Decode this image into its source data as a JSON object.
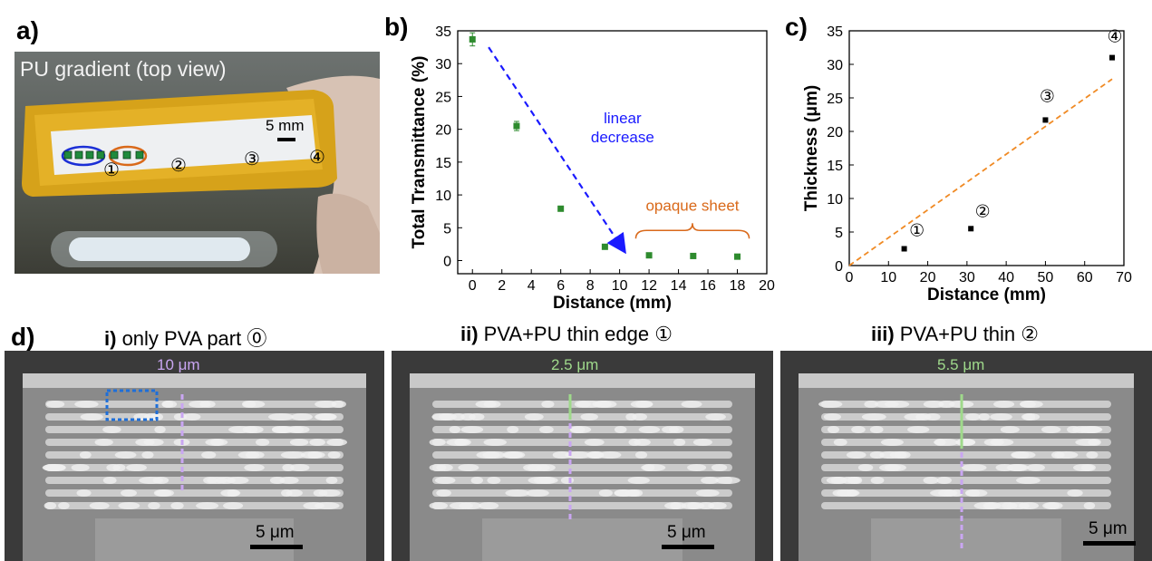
{
  "panels": {
    "a": {
      "letter": "a)",
      "title": "PU gradient (top view)",
      "scale_label": "5 mm",
      "markers": [
        "①",
        "②",
        "③",
        "④"
      ]
    },
    "b": {
      "letter": "b)"
    },
    "c": {
      "letter": "c)"
    },
    "d": {
      "letter": "d)",
      "images": [
        {
          "title_bold": "i)",
          "title_rest": " only PVA part ⓪",
          "measure": "10 μm",
          "measure_color": "#c9a6f2",
          "scale_label": "5 μm"
        },
        {
          "title_bold": "ii)",
          "title_rest": " PVA+PU thin edge ①",
          "measure": "2.5 μm",
          "measure_color": "#9fd98b",
          "scale_label": "5 μm"
        },
        {
          "title_bold": "iii)",
          "title_rest": " PVA+PU thin ②",
          "measure": "5.5 μm",
          "measure_color": "#9fd98b",
          "scale_label": "5 μm"
        }
      ]
    }
  },
  "chart_data": [
    {
      "type": "scatter",
      "panel": "b",
      "xlabel": "Distance (mm)",
      "ylabel": "Total Transmittance (%)",
      "xlim": [
        -1,
        20
      ],
      "ylim": [
        -2,
        35
      ],
      "xticks": [
        0,
        2,
        4,
        6,
        8,
        10,
        12,
        14,
        16,
        18,
        20
      ],
      "yticks": [
        0,
        5,
        10,
        15,
        20,
        25,
        30,
        35
      ],
      "series": [
        {
          "color": "#2e8b2e",
          "x": [
            0,
            3,
            6,
            9,
            12,
            15,
            18
          ],
          "y": [
            33.7,
            20.5,
            7.9,
            2.1,
            0.8,
            0.7,
            0.6
          ],
          "err": [
            1.0,
            0.7,
            0,
            0,
            0,
            0,
            0
          ]
        }
      ],
      "annotations": [
        {
          "text_lines": [
            "linear",
            "decrease"
          ],
          "color": "#1a1aff"
        },
        {
          "text_lines": [
            "opaque sheet"
          ],
          "color": "#d9691a"
        }
      ],
      "grid": false
    },
    {
      "type": "scatter",
      "panel": "c",
      "xlabel": "Distance (mm)",
      "ylabel": "Thickness (μm)",
      "xlim": [
        0,
        70
      ],
      "ylim": [
        0,
        35
      ],
      "xticks": [
        0,
        10,
        20,
        30,
        40,
        50,
        60,
        70
      ],
      "yticks": [
        0,
        5,
        10,
        15,
        20,
        25,
        30,
        35
      ],
      "series": [
        {
          "color": "#000000",
          "x": [
            14,
            31,
            50,
            67
          ],
          "y": [
            2.5,
            5.5,
            21.7,
            31.0
          ],
          "labels": [
            "①",
            "②",
            "③",
            "④"
          ]
        }
      ],
      "fit_line": {
        "x": [
          0,
          67
        ],
        "y": [
          0,
          27.8
        ],
        "color": "#f08a24",
        "style": "dashed"
      },
      "grid": false
    }
  ]
}
